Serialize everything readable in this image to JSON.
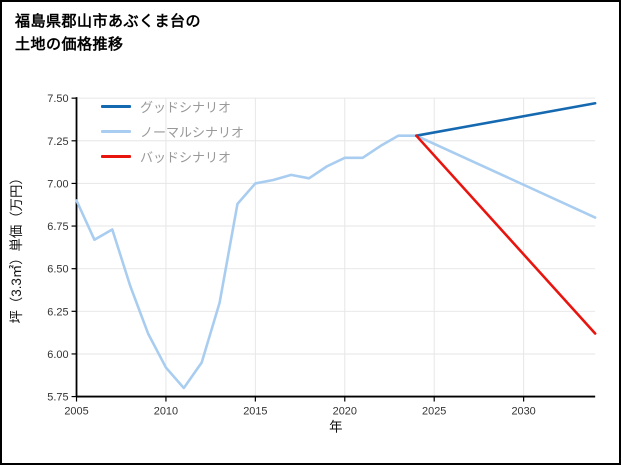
{
  "title": {
    "line1": "福島県郡山市あぶくま台の",
    "line2": "土地の価格推移"
  },
  "legend": {
    "items": [
      {
        "label": "グッドシナリオ",
        "color": "#1569b0"
      },
      {
        "label": "ノーマルシナリオ",
        "color": "#a9cdf0"
      },
      {
        "label": "バッドシナリオ",
        "color": "#e8150f"
      }
    ]
  },
  "chart_data": {
    "type": "line",
    "title": "福島県郡山市あぶくま台の土地の価格推移",
    "xlabel": "年",
    "ylabel": "坪（3.3㎡）単価（万円）",
    "xlim": [
      2005,
      2034
    ],
    "ylim": [
      5.75,
      7.5
    ],
    "x_ticks": [
      2005,
      2010,
      2015,
      2020,
      2025,
      2030
    ],
    "y_ticks": [
      5.75,
      6.0,
      6.25,
      6.5,
      6.75,
      7.0,
      7.25,
      7.5
    ],
    "grid": true,
    "legend_position": "upper-left",
    "series": [
      {
        "name": "グッドシナリオ",
        "color": "#1569b0",
        "x": [
          2024,
          2034
        ],
        "values": [
          7.28,
          7.47
        ]
      },
      {
        "name": "ノーマルシナリオ",
        "color": "#a9cdf0",
        "x": [
          2005,
          2006,
          2007,
          2008,
          2009,
          2010,
          2011,
          2012,
          2013,
          2014,
          2015,
          2016,
          2017,
          2018,
          2019,
          2020,
          2021,
          2022,
          2023,
          2024,
          2034
        ],
        "values": [
          6.9,
          6.67,
          6.73,
          6.4,
          6.12,
          5.92,
          5.8,
          5.95,
          6.3,
          6.88,
          7.0,
          7.02,
          7.05,
          7.03,
          7.1,
          7.15,
          7.15,
          7.22,
          7.28,
          7.28,
          6.8
        ]
      },
      {
        "name": "バッドシナリオ",
        "color": "#e8150f",
        "x": [
          2024,
          2034
        ],
        "values": [
          7.28,
          6.12
        ]
      }
    ]
  }
}
